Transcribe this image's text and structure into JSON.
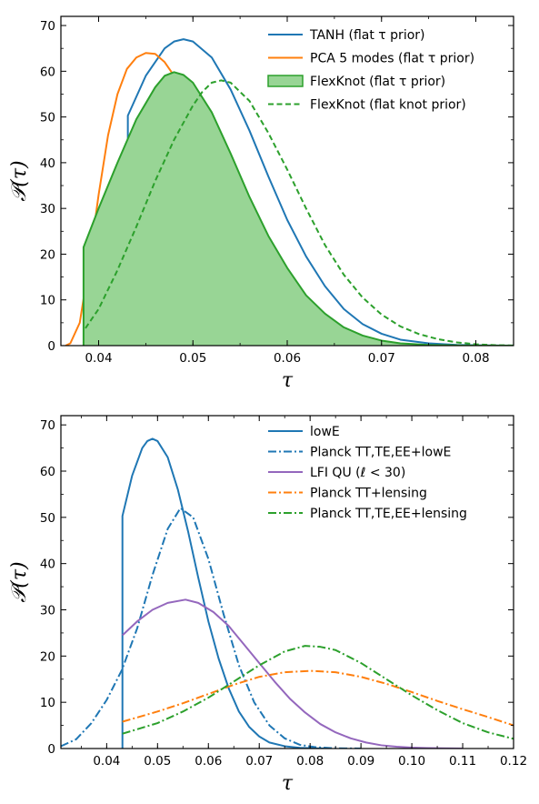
{
  "figure": {
    "background": "#ffffff"
  },
  "chart_data": [
    {
      "type": "line",
      "xlabel": "τ",
      "ylabel": "𝒫(τ)",
      "xlim": [
        0.036,
        0.084
      ],
      "ylim": [
        0,
        72
      ],
      "xticks": [
        0.04,
        0.05,
        0.06,
        0.07,
        0.08
      ],
      "xtick_labels": [
        "0.04",
        "0.05",
        "0.06",
        "0.07",
        "0.08"
      ],
      "yticks": [
        0,
        10,
        20,
        30,
        40,
        50,
        60,
        70
      ],
      "ytick_labels": [
        "0",
        "10",
        "20",
        "30",
        "40",
        "50",
        "60",
        "70"
      ],
      "grid": false,
      "legend_position": "top-right",
      "series": [
        {
          "name": "TANH (flat τ prior)",
          "color": "#1f77b4",
          "style": "solid",
          "fill": false,
          "x": [
            0.0431,
            0.0431,
            0.045,
            0.047,
            0.048,
            0.049,
            0.05,
            0.052,
            0.054,
            0.056,
            0.058,
            0.06,
            0.062,
            0.064,
            0.066,
            0.068,
            0.07,
            0.072,
            0.075,
            0.078,
            0.081,
            0.084
          ],
          "y": [
            0,
            50.3,
            59,
            65,
            66.5,
            67,
            66.5,
            63,
            56,
            47,
            37,
            27.5,
            19.5,
            13,
            8,
            4.7,
            2.6,
            1.3,
            0.5,
            0.15,
            0.04,
            0.01
          ]
        },
        {
          "name": "PCA 5 modes (flat τ prior)",
          "color": "#ff7f0e",
          "style": "solid",
          "fill": false,
          "x": [
            0.0365,
            0.037,
            0.038,
            0.039,
            0.04,
            0.041,
            0.042,
            0.043,
            0.044,
            0.045,
            0.046,
            0.047,
            0.048,
            0.05,
            0.052,
            0.054,
            0.056,
            0.058,
            0.06,
            0.062,
            0.064,
            0.066,
            0.068,
            0.07,
            0.072,
            0.075,
            0.078
          ],
          "y": [
            0,
            0.5,
            5,
            18,
            33,
            46,
            55,
            60.5,
            63,
            64,
            63.8,
            62,
            59,
            50,
            40,
            31,
            22,
            15,
            9.5,
            5.5,
            3,
            1.5,
            0.7,
            0.3,
            0.1,
            0.03,
            0.01
          ]
        },
        {
          "name": "FlexKnot (flat τ prior)",
          "color": "#2ca02c",
          "style": "solid",
          "fill": true,
          "fill_color": "#98d595",
          "x": [
            0.0384,
            0.0384,
            0.04,
            0.042,
            0.044,
            0.046,
            0.047,
            0.048,
            0.049,
            0.05,
            0.052,
            0.054,
            0.056,
            0.058,
            0.06,
            0.062,
            0.064,
            0.066,
            0.068,
            0.07,
            0.072,
            0.075,
            0.078,
            0.081,
            0.084
          ],
          "y": [
            0,
            21.5,
            30,
            40,
            49.5,
            56.5,
            59,
            59.8,
            59.2,
            57.5,
            51,
            42,
            32.5,
            24,
            17,
            11,
            7,
            4,
            2.2,
            1.1,
            0.5,
            0.15,
            0.04,
            0.01,
            0
          ]
        },
        {
          "name": "FlexKnot (flat knot prior)",
          "color": "#2ca02c",
          "style": "dashed",
          "fill": false,
          "x": [
            0.0386,
            0.04,
            0.042,
            0.044,
            0.046,
            0.048,
            0.05,
            0.051,
            0.052,
            0.053,
            0.054,
            0.056,
            0.058,
            0.06,
            0.062,
            0.064,
            0.066,
            0.068,
            0.07,
            0.072,
            0.074,
            0.076,
            0.078,
            0.08,
            0.082,
            0.084
          ],
          "y": [
            3.8,
            8,
            16.5,
            26,
            36,
            45,
            52.5,
            55.5,
            57.5,
            58,
            57.5,
            53.5,
            46.5,
            38.5,
            30,
            22,
            15.5,
            10.5,
            6.8,
            4.2,
            2.5,
            1.4,
            0.7,
            0.3,
            0.1,
            0.03
          ]
        }
      ]
    },
    {
      "type": "line",
      "xlabel": "τ",
      "ylabel": "𝒫(τ)",
      "xlim": [
        0.031,
        0.12
      ],
      "ylim": [
        0,
        72
      ],
      "xticks": [
        0.04,
        0.05,
        0.06,
        0.07,
        0.08,
        0.09,
        0.1,
        0.11,
        0.12
      ],
      "xtick_labels": [
        "0.04",
        "0.05",
        "0.06",
        "0.07",
        "0.08",
        "0.09",
        "0.10",
        "0.11",
        "0.12"
      ],
      "yticks": [
        0,
        10,
        20,
        30,
        40,
        50,
        60,
        70
      ],
      "ytick_labels": [
        "0",
        "10",
        "20",
        "30",
        "40",
        "50",
        "60",
        "70"
      ],
      "grid": false,
      "legend_position": "top-right",
      "series": [
        {
          "name": "lowE",
          "color": "#1f77b4",
          "style": "solid",
          "x": [
            0.0431,
            0.0431,
            0.045,
            0.047,
            0.048,
            0.049,
            0.05,
            0.052,
            0.054,
            0.056,
            0.058,
            0.06,
            0.062,
            0.064,
            0.066,
            0.068,
            0.07,
            0.072,
            0.075,
            0.078,
            0.081,
            0.084
          ],
          "y": [
            0,
            50.3,
            59,
            65,
            66.5,
            67,
            66.5,
            63,
            56,
            47,
            37,
            27.5,
            19.5,
            13,
            8,
            4.7,
            2.6,
            1.3,
            0.5,
            0.15,
            0.04,
            0.01
          ]
        },
        {
          "name": "Planck TT,TE,EE+lowE",
          "color": "#1f77b4",
          "style": "dashdot",
          "x": [
            0.031,
            0.034,
            0.037,
            0.04,
            0.043,
            0.046,
            0.049,
            0.052,
            0.0545,
            0.057,
            0.06,
            0.063,
            0.066,
            0.069,
            0.072,
            0.075,
            0.078,
            0.081,
            0.084,
            0.087,
            0.09
          ],
          "y": [
            0.5,
            2,
            5.5,
            10.5,
            17,
            26,
            37.5,
            47.5,
            52,
            50,
            41,
            29,
            18,
            10,
            5,
            2.2,
            0.8,
            0.3,
            0.1,
            0.03,
            0.01
          ]
        },
        {
          "name": "LFI QU (ℓ < 30)",
          "color": "#9467bd",
          "style": "solid",
          "x": [
            0.0431,
            0.046,
            0.049,
            0.052,
            0.0555,
            0.058,
            0.061,
            0.064,
            0.067,
            0.07,
            0.073,
            0.076,
            0.079,
            0.082,
            0.085,
            0.088,
            0.091,
            0.094,
            0.097,
            0.1,
            0.103,
            0.106,
            0.11
          ],
          "y": [
            24.5,
            27.5,
            30,
            31.5,
            32.2,
            31.5,
            29.5,
            26.5,
            22.5,
            18.5,
            14.5,
            10.8,
            7.8,
            5.3,
            3.5,
            2.2,
            1.3,
            0.7,
            0.4,
            0.2,
            0.1,
            0.04,
            0.01
          ]
        },
        {
          "name": "Planck TT+lensing",
          "color": "#ff7f0e",
          "style": "dashdot",
          "x": [
            0.0431,
            0.05,
            0.055,
            0.06,
            0.065,
            0.07,
            0.075,
            0.08,
            0.085,
            0.09,
            0.095,
            0.1,
            0.105,
            0.11,
            0.115,
            0.12
          ],
          "y": [
            5.8,
            8,
            9.8,
            11.8,
            13.8,
            15.5,
            16.5,
            16.8,
            16.5,
            15.5,
            14,
            12.2,
            10.3,
            8.5,
            6.8,
            5
          ]
        },
        {
          "name": "Planck TT,TE,EE+lensing",
          "color": "#2ca02c",
          "style": "dashdot",
          "x": [
            0.0431,
            0.05,
            0.055,
            0.06,
            0.065,
            0.07,
            0.075,
            0.079,
            0.082,
            0.085,
            0.09,
            0.095,
            0.1,
            0.105,
            0.11,
            0.115,
            0.12
          ],
          "y": [
            3.2,
            5.5,
            8,
            11,
            14.5,
            18,
            21,
            22.2,
            22,
            21.3,
            18.5,
            15,
            11.5,
            8.3,
            5.5,
            3.5,
            2.1
          ]
        }
      ]
    }
  ]
}
